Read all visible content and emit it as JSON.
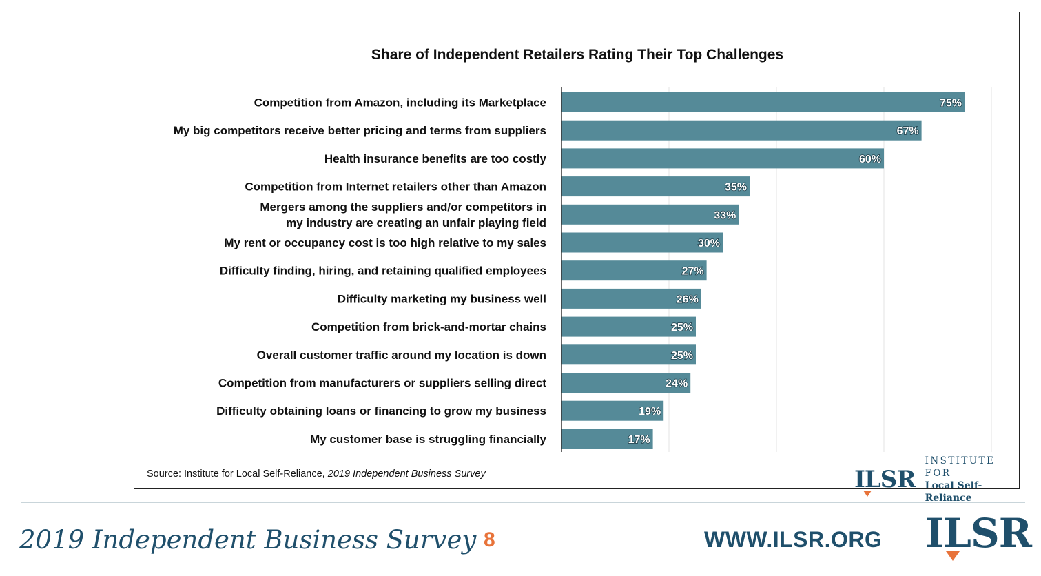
{
  "chart_data": {
    "type": "bar",
    "orientation": "horizontal",
    "title": "Share of Independent Retailers Rating Their Top Challenges",
    "categories": [
      "Competition from Amazon, including its Marketplace",
      "My big competitors receive better pricing and terms from suppliers",
      "Health insurance benefits are too costly",
      "Competition from Internet retailers other than Amazon",
      "Mergers among the suppliers and/or competitors in my industry are creating an unfair playing field",
      "My rent or occupancy cost is too high relative to my sales",
      "Difficulty finding, hiring, and retaining qualified employees",
      "Difficulty marketing my business well",
      "Competition from brick-and-mortar chains",
      "Overall customer traffic around my location is down",
      "Competition from manufacturers or suppliers selling direct",
      "Difficulty obtaining loans or financing to grow my business",
      "My customer base is struggling financially"
    ],
    "label_lines": [
      [
        "Competition from Amazon, including its Marketplace"
      ],
      [
        "My big competitors receive better pricing and terms from suppliers"
      ],
      [
        "Health insurance benefits are too costly"
      ],
      [
        "Competition from Internet retailers other than Amazon"
      ],
      [
        "Mergers among the suppliers and/or competitors in",
        "my industry are creating an unfair playing field"
      ],
      [
        "My rent or occupancy cost is too high relative to my sales"
      ],
      [
        "Difficulty finding, hiring, and retaining qualified employees"
      ],
      [
        "Difficulty marketing my business well"
      ],
      [
        "Competition from brick-and-mortar chains"
      ],
      [
        "Overall customer traffic around my location is down"
      ],
      [
        "Competition from manufacturers or suppliers selling direct"
      ],
      [
        "Difficulty obtaining loans or financing to grow my business"
      ],
      [
        "My customer base is struggling financially"
      ]
    ],
    "values": [
      75,
      67,
      60,
      35,
      33,
      30,
      27,
      26,
      25,
      25,
      24,
      19,
      17
    ],
    "value_labels": [
      "75%",
      "67%",
      "60%",
      "35%",
      "33%",
      "30%",
      "27%",
      "26%",
      "25%",
      "25%",
      "24%",
      "19%",
      "17%"
    ],
    "xlim": [
      0,
      80
    ],
    "grid": true,
    "bar_color": "#558a98"
  },
  "source": {
    "prefix": "Source: Institute for Local Self-Reliance, ",
    "title": "2019 Independent Business Survey"
  },
  "logo": {
    "mark": "ILSR",
    "line1": "INSTITUTE FOR",
    "line2": "Local Self-Reliance"
  },
  "footer": {
    "title": "2019 Independent Business Survey",
    "page_number": "8",
    "website": "WWW.ILSR.ORG",
    "logo_mark": "ILSR"
  },
  "colors": {
    "brand_blue": "#1f4f6b",
    "accent_orange": "#e8733a"
  }
}
